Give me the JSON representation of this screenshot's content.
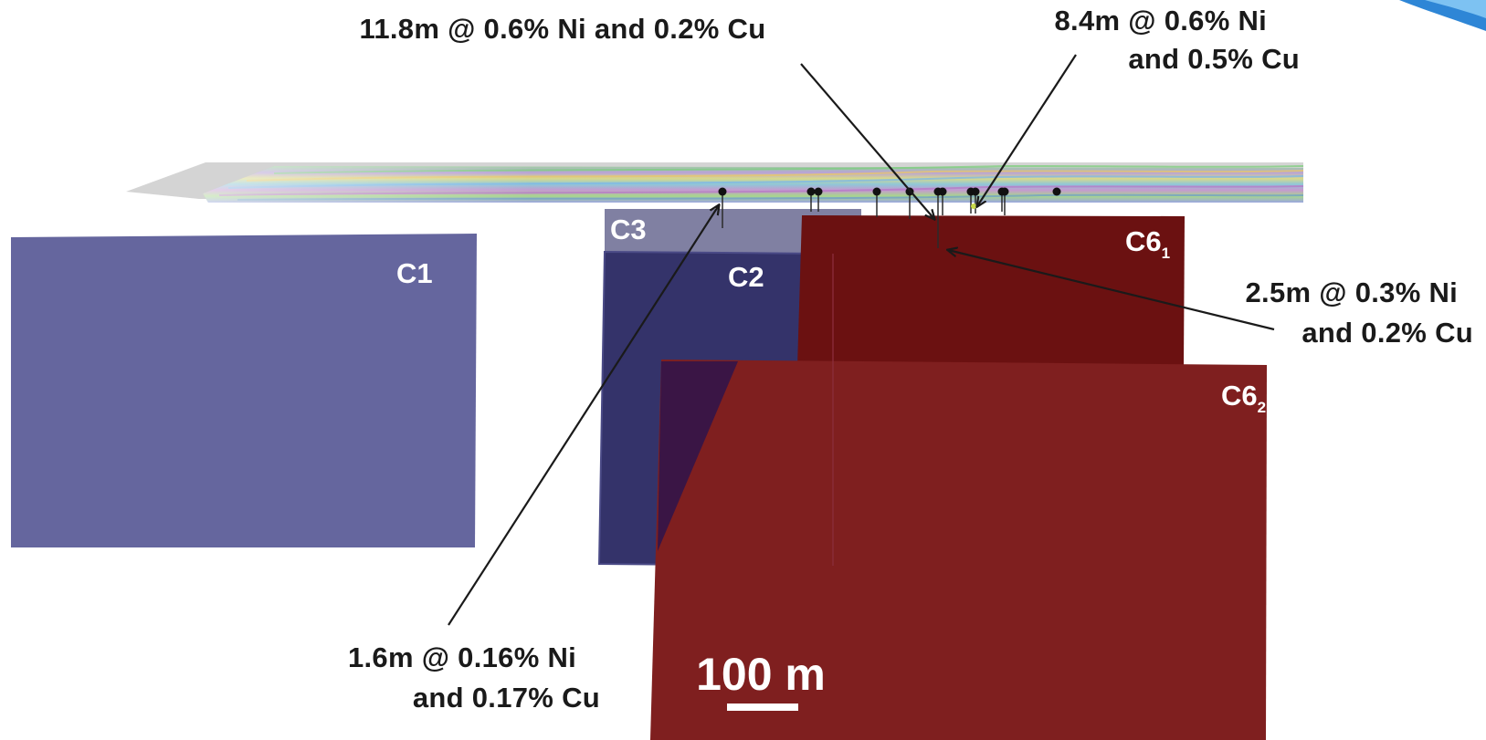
{
  "colors": {
    "blue_plate": "#65669e",
    "dark_blue_plate": "#34336a",
    "dark_red_plate": "#6b1111",
    "red_plate": "#7f1f1f",
    "grey_plate": "#8080a2",
    "arrow": "#1a1a1a",
    "drillhole_collar": "#111111"
  },
  "plates": {
    "c1": "C1",
    "c2": "C2",
    "c3": "C3",
    "c6_1": {
      "main": "C6",
      "sub": "1"
    },
    "c6_2": {
      "main": "C6",
      "sub": "2"
    }
  },
  "annotations": {
    "top_left": [
      "11.8m @ 0.6% Ni and 0.2% Cu"
    ],
    "top_right": [
      "8.4m @ 0.6% Ni",
      "and 0.5% Cu"
    ],
    "middle_right": [
      "2.5m @ 0.3% Ni",
      "and 0.2% Cu"
    ],
    "bottom_left": [
      "1.6m @ 0.16% Ni",
      "and 0.17% Cu"
    ]
  },
  "scale_bar": {
    "label": "100 m",
    "length_m": 100
  }
}
